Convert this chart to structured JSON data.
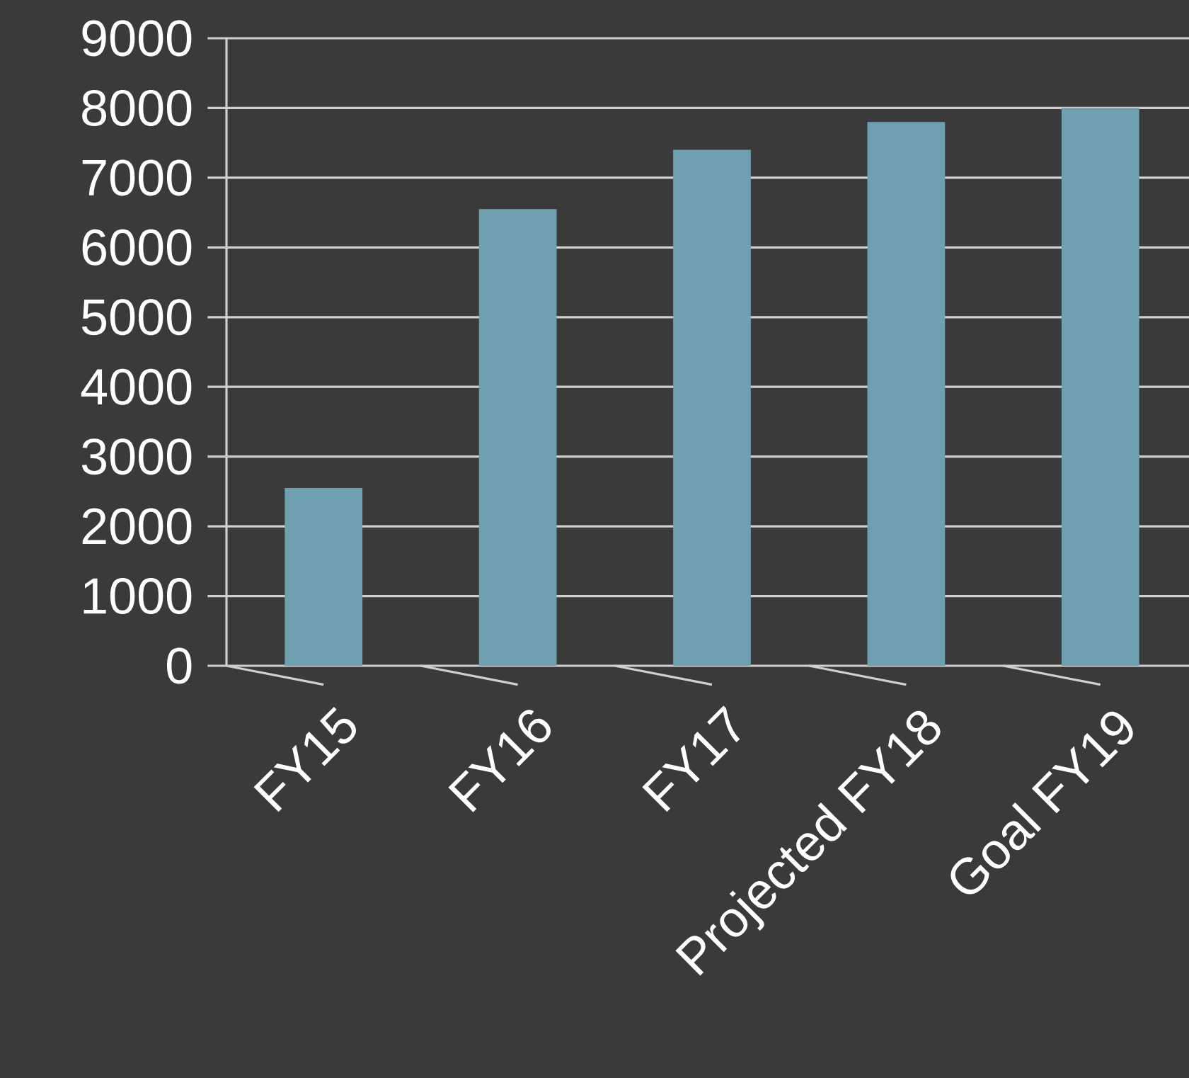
{
  "chart_data": {
    "type": "bar",
    "categories": [
      "FY15",
      "FY16",
      "FY17",
      "Projected FY18",
      "Goal FY19"
    ],
    "values": [
      2550,
      6550,
      7400,
      7800,
      8000
    ],
    "color": "#6fa0b0",
    "ylim": [
      0,
      9000
    ],
    "yticks": [
      0,
      1000,
      2000,
      3000,
      4000,
      5000,
      6000,
      7000,
      8000,
      9000
    ],
    "grid": "y"
  }
}
